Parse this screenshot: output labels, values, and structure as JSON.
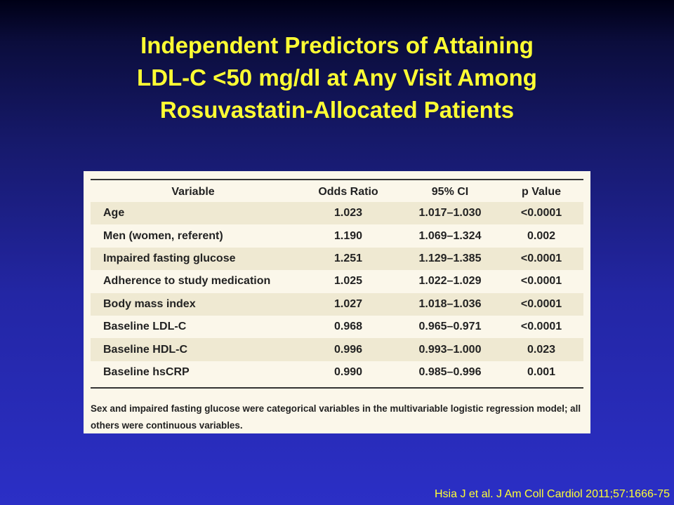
{
  "title": {
    "line1": "Independent Predictors of Attaining",
    "line2": "LDL-C <50 mg/dl at Any Visit Among",
    "line3": "Rosuvastatin-Allocated Patients"
  },
  "chart_data": {
    "type": "table",
    "columns": [
      "Variable",
      "Odds Ratio",
      "95% CI",
      "p Value"
    ],
    "rows": [
      [
        "Age",
        "1.023",
        "1.017–1.030",
        "<0.0001"
      ],
      [
        "Men (women, referent)",
        "1.190",
        "1.069–1.324",
        "0.002"
      ],
      [
        "Impaired fasting glucose",
        "1.251",
        "1.129–1.385",
        "<0.0001"
      ],
      [
        "Adherence to study medication",
        "1.025",
        "1.022–1.029",
        "<0.0001"
      ],
      [
        "Body mass index",
        "1.027",
        "1.018–1.036",
        "<0.0001"
      ],
      [
        "Baseline LDL-C",
        "0.968",
        "0.965–0.971",
        "<0.0001"
      ],
      [
        "Baseline HDL-C",
        "0.996",
        "0.993–1.000",
        "0.023"
      ],
      [
        "Baseline hsCRP",
        "0.990",
        "0.985–0.996",
        "0.001"
      ]
    ],
    "footnote": "Sex and impaired fasting glucose were categorical variables in the multivariable logistic regression model; all others were continuous variables."
  },
  "citation": "Hsia J et al. J Am Coll Cardiol 2011;57:1666-75",
  "colors": {
    "title": "#ffff33",
    "background_top": "#000016",
    "background_bottom": "#2b2fc6",
    "table_background": "#fbf7ea",
    "row_stripe": "#efe9d2"
  }
}
